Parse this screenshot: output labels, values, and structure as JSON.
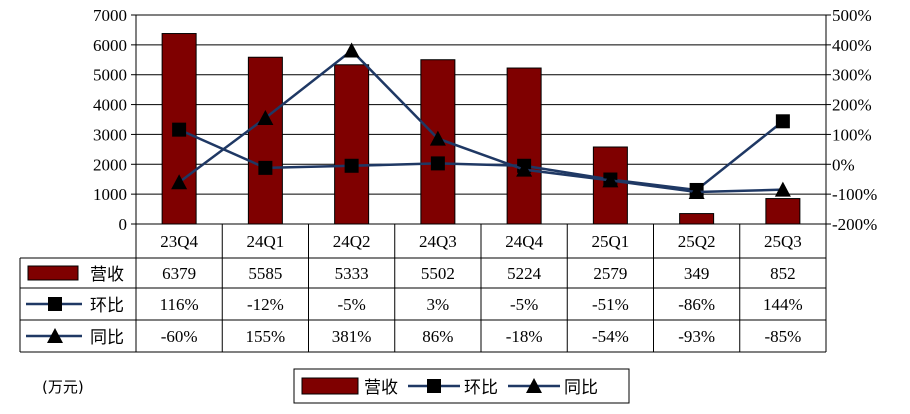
{
  "chart_data": {
    "type": "bar",
    "unit_label": "(万元)",
    "categories": [
      "23Q4",
      "24Q1",
      "24Q2",
      "24Q3",
      "24Q4",
      "25Q1",
      "25Q2",
      "25Q3"
    ],
    "y_left": {
      "min": 0,
      "max": 7000,
      "step": 1000,
      "ticks": [
        "0",
        "1000",
        "2000",
        "3000",
        "4000",
        "5000",
        "6000",
        "7000"
      ]
    },
    "y_right": {
      "min": -200,
      "max": 500,
      "step": 100,
      "ticks": [
        "-200%",
        "-100%",
        "0%",
        "100%",
        "200%",
        "300%",
        "400%",
        "500%"
      ]
    },
    "grid": true,
    "legend_position": "bottom",
    "series": [
      {
        "name": "营收",
        "type": "bar",
        "axis": "left",
        "color": "#7f0000",
        "values": [
          6379,
          5585,
          5333,
          5502,
          5224,
          2579,
          349,
          852
        ],
        "labels": [
          "6379",
          "5585",
          "5333",
          "5502",
          "5224",
          "2579",
          "349",
          "852"
        ]
      },
      {
        "name": "环比",
        "type": "line",
        "marker": "square",
        "axis": "right",
        "color": "#1f3864",
        "values": [
          116,
          -12,
          -5,
          3,
          -5,
          -51,
          -86,
          144
        ],
        "labels": [
          "116%",
          "-12%",
          "-5%",
          "3%",
          "-5%",
          "-51%",
          "-86%",
          "144%"
        ]
      },
      {
        "name": "同比",
        "type": "line",
        "marker": "triangle",
        "axis": "right",
        "color": "#1f3864",
        "values": [
          -60,
          155,
          381,
          86,
          -18,
          -54,
          -93,
          -85
        ],
        "labels": [
          "-60%",
          "155%",
          "381%",
          "86%",
          "-18%",
          "-54%",
          "-93%",
          "-85%"
        ]
      }
    ]
  }
}
